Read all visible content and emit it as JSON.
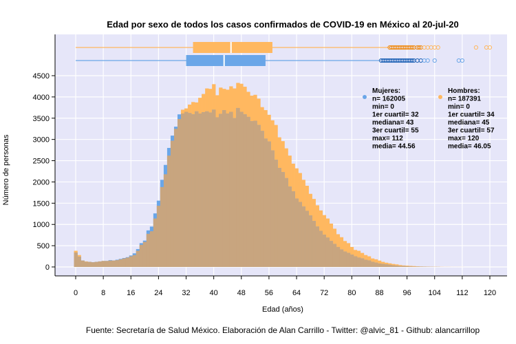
{
  "chart_data": {
    "type": "bar",
    "title": "Edad por sexo de todos los casos confirmados de COVID-19 en México al 20-jul-20",
    "xlabel": "Edad (años)",
    "ylabel": "Número de personas",
    "caption": "Fuente: Secretaría de Salud México. Elaboración de Alan Carrillo - Twitter: @alvic_81 - Github: alancarrillop",
    "xlim": [
      0,
      120
    ],
    "ylim": [
      0,
      4500
    ],
    "x_ticks": [
      0,
      8,
      16,
      24,
      32,
      40,
      48,
      56,
      64,
      72,
      80,
      88,
      96,
      104,
      112,
      120
    ],
    "y_ticks": [
      0,
      500,
      1000,
      1500,
      2000,
      2500,
      3000,
      3500,
      4000,
      4500
    ],
    "grid": true,
    "colors": {
      "mujeres": "#6aa6e8",
      "hombres": "#ffb860",
      "overlap": "#c8a57f",
      "background": "#e6e6f9"
    },
    "series": [
      {
        "name": "Mujeres",
        "color": "#6aa6e8",
        "values": [
          340,
          240,
          150,
          120,
          120,
          110,
          120,
          130,
          140,
          140,
          160,
          150,
          170,
          190,
          210,
          230,
          270,
          320,
          420,
          560,
          620,
          860,
          950,
          1260,
          1560,
          2050,
          2400,
          2800,
          3090,
          3300,
          3590,
          3610,
          3650,
          3620,
          3590,
          3660,
          3610,
          3640,
          3660,
          3630,
          3700,
          3520,
          3600,
          3690,
          3610,
          3650,
          3500,
          3740,
          3650,
          3590,
          3530,
          3430,
          3440,
          3340,
          3200,
          3020,
          2950,
          2740,
          2520,
          2330,
          2230,
          2090,
          1890,
          1780,
          1610,
          1530,
          1420,
          1320,
          1210,
          1080,
          950,
          850,
          760,
          690,
          610,
          540,
          470,
          410,
          360,
          330,
          290,
          250,
          220,
          200,
          170,
          150,
          120,
          100,
          80,
          70,
          60,
          50,
          40,
          30,
          20,
          20,
          15,
          10,
          8,
          5,
          4,
          3,
          2,
          2,
          1,
          1,
          0,
          0,
          0,
          0,
          0,
          0,
          0,
          0,
          0,
          0,
          0,
          0,
          0,
          0,
          0,
          0,
          0
        ]
      },
      {
        "name": "Hombres",
        "color": "#ffb860",
        "values": [
          380,
          280,
          150,
          130,
          120,
          110,
          120,
          130,
          140,
          140,
          150,
          150,
          160,
          180,
          200,
          220,
          250,
          280,
          380,
          520,
          590,
          780,
          840,
          1140,
          1440,
          1880,
          2180,
          2620,
          2970,
          3250,
          3480,
          3700,
          3730,
          3820,
          3880,
          3870,
          3980,
          4070,
          4200,
          4190,
          4300,
          4040,
          4220,
          4190,
          4170,
          4250,
          4200,
          4330,
          4310,
          4240,
          4120,
          4030,
          4050,
          3960,
          3760,
          3690,
          3580,
          3450,
          3340,
          3050,
          2960,
          2790,
          2620,
          2430,
          2320,
          2210,
          2050,
          1910,
          1720,
          1600,
          1450,
          1330,
          1220,
          1140,
          1020,
          900,
          770,
          700,
          610,
          560,
          470,
          400,
          380,
          330,
          280,
          250,
          200,
          180,
          150,
          120,
          100,
          85,
          70,
          60,
          45,
          35,
          30,
          25,
          20,
          15,
          12,
          10,
          8,
          6,
          5,
          4,
          3,
          2,
          2,
          1,
          1,
          1,
          1,
          0,
          0,
          0,
          0,
          0,
          0
        ]
      }
    ],
    "boxplots": [
      {
        "name": "Hombres",
        "q1": 34,
        "median": 45,
        "q3": 57,
        "whisker_low": 0,
        "whisker_high": 91,
        "outliers": [
          91,
          91.5,
          92,
          92.5,
          93,
          93.5,
          94,
          94.5,
          95,
          95.5,
          96,
          96.5,
          97,
          97.5,
          98,
          99,
          99.5,
          100,
          101,
          102,
          103,
          104,
          105,
          116,
          119,
          120
        ]
      },
      {
        "name": "Mujeres",
        "q1": 32,
        "median": 43,
        "q3": 55,
        "whisker_low": 0,
        "whisker_high": 88,
        "outliers": [
          88.5,
          89,
          89.5,
          90,
          90.5,
          91,
          91.5,
          92,
          92.5,
          93,
          93.5,
          94,
          94.5,
          95,
          95.5,
          96,
          96.5,
          97,
          97.5,
          98,
          99,
          100,
          101,
          102,
          104,
          111,
          112
        ]
      }
    ],
    "stats": [
      {
        "name": "Mujeres",
        "lines": [
          "Mujeres:",
          "n= 162005",
          "min= 0",
          "1er cuartil= 32",
          "mediana= 43",
          "3er cuartil= 55",
          "max= 112",
          "media= 44.56"
        ]
      },
      {
        "name": "Hombres",
        "lines": [
          "Hombres:",
          "n= 187391",
          "min= 0",
          "1er cuartil= 34",
          "mediana= 45",
          "3er cuartil= 57",
          "max= 120",
          "media= 46.05"
        ]
      }
    ]
  }
}
